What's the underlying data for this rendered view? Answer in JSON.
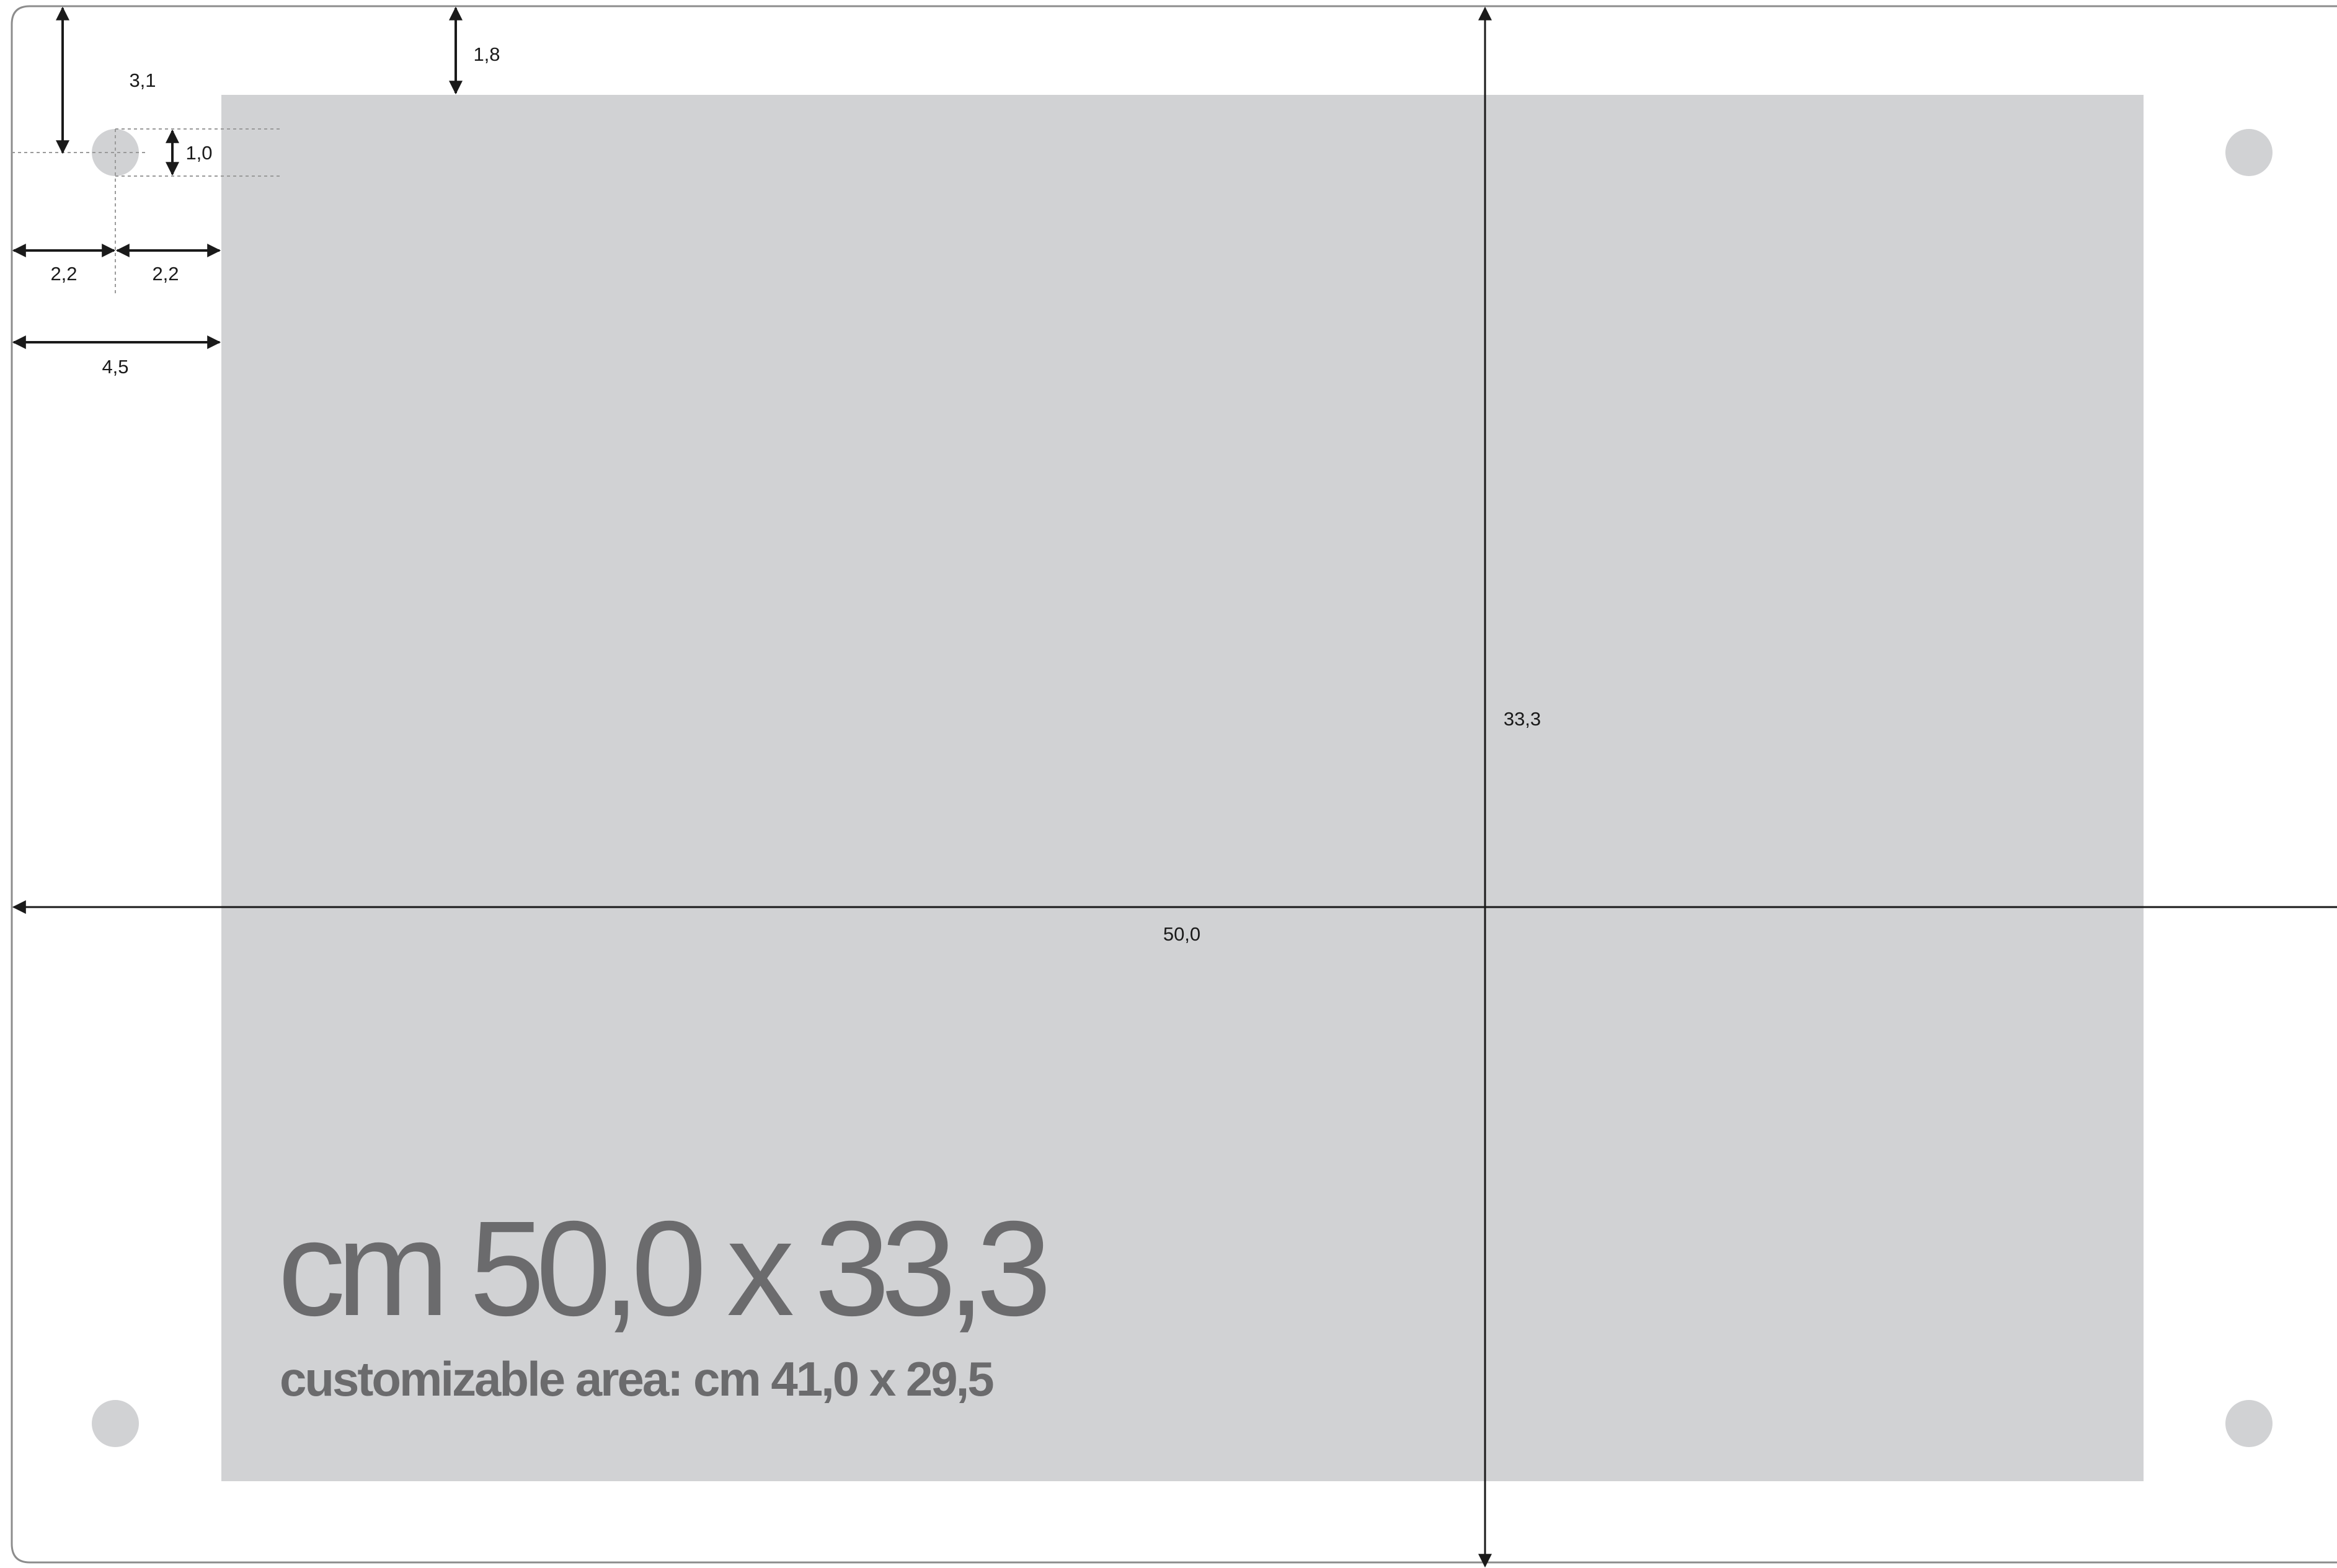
{
  "colors": {
    "panel": "#ffffff",
    "panel_border": "#8c8c8c",
    "custom_area": "#d1d2d4",
    "holes": "#d1d2d4",
    "dimension_lines": "#1a1a1a",
    "guide_lines": "#9a9a9a",
    "title_text": "#6b6b6d"
  },
  "title": "cm 50,0 x 33,3",
  "subtitle": "customizable area: cm 41,0 x 29,5",
  "dimensions": {
    "total_width": "50,0",
    "total_height": "33,3",
    "top_margin": "1,8",
    "hole_from_top": "3,1",
    "hole_diameter": "1,0",
    "hole_from_left": "2,2",
    "hole_to_area": "2,2",
    "side_margin": "4,5"
  }
}
